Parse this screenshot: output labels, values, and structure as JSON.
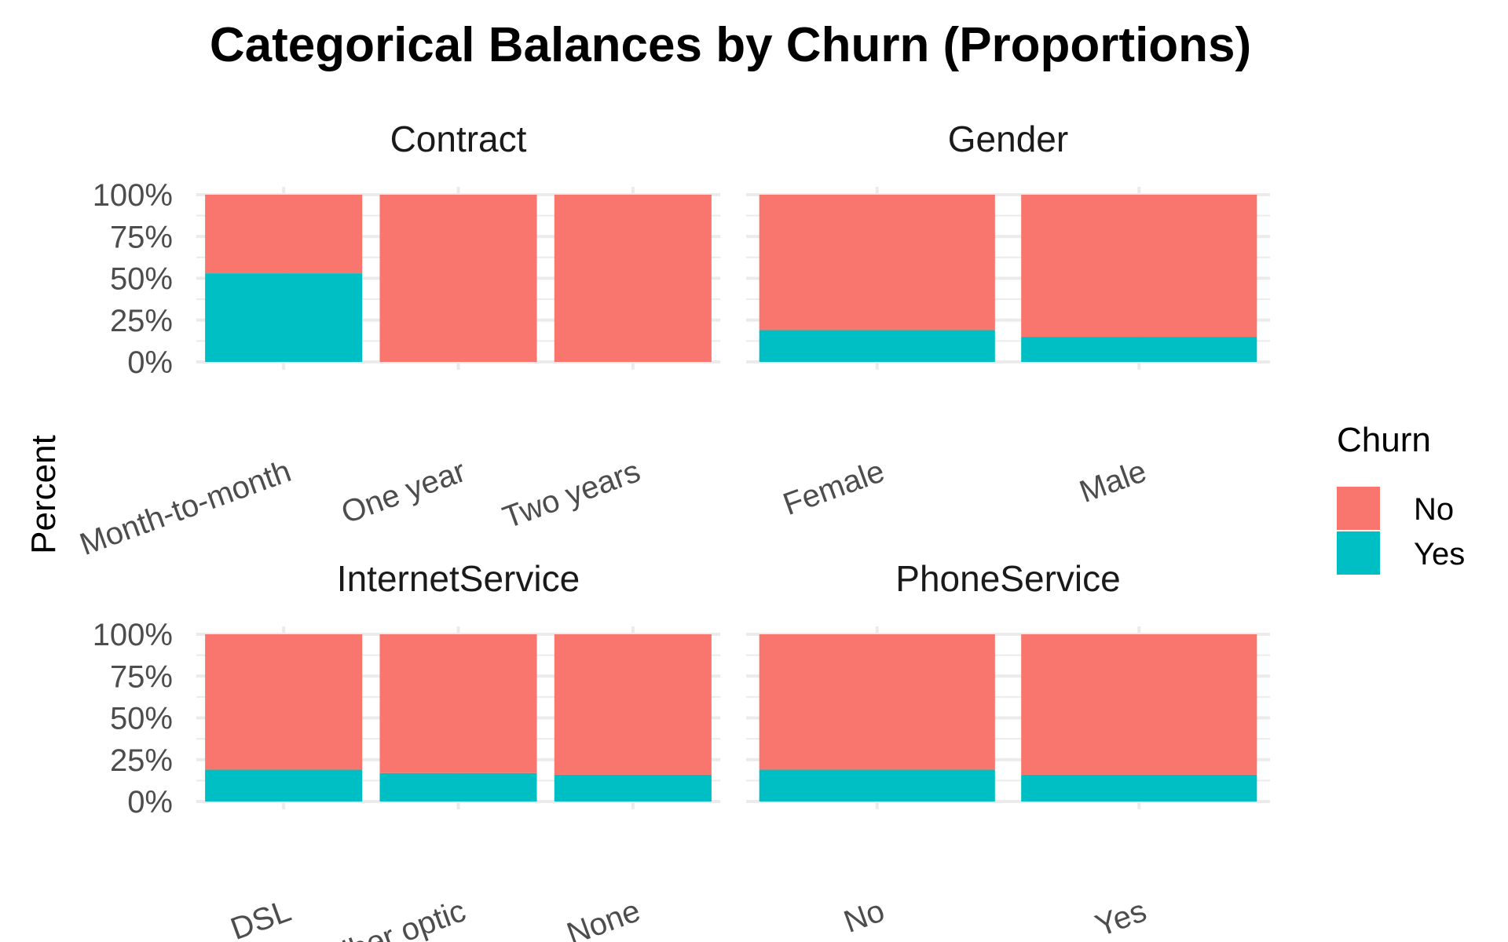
{
  "chart_data": {
    "type": "bar",
    "stacked": true,
    "title": "Categorical Balances by Churn (Proportions)",
    "ylabel": "Percent",
    "xlabel": "",
    "ylim": [
      0,
      1
    ],
    "y_ticks": [
      "0%",
      "25%",
      "50%",
      "75%",
      "100%"
    ],
    "grid": true,
    "legend": {
      "title": "Churn",
      "placement": "right",
      "entries": [
        {
          "name": "No",
          "color": "#F8766D"
        },
        {
          "name": "Yes",
          "color": "#00BFC4"
        }
      ]
    },
    "facets": [
      {
        "name": "Contract",
        "categories": [
          "Month-to-month",
          "One year",
          "Two years"
        ],
        "series": [
          {
            "name": "No",
            "values": [
              0.47,
              1.0,
              1.0
            ]
          },
          {
            "name": "Yes",
            "values": [
              0.53,
              0.0,
              0.0
            ]
          }
        ]
      },
      {
        "name": "Gender",
        "categories": [
          "Female",
          "Male"
        ],
        "series": [
          {
            "name": "No",
            "values": [
              0.81,
              0.85
            ]
          },
          {
            "name": "Yes",
            "values": [
              0.19,
              0.15
            ]
          }
        ]
      },
      {
        "name": "InternetService",
        "categories": [
          "DSL",
          "Fiber optic",
          "None"
        ],
        "series": [
          {
            "name": "No",
            "values": [
              0.81,
              0.83,
              0.84
            ]
          },
          {
            "name": "Yes",
            "values": [
              0.19,
              0.17,
              0.16
            ]
          }
        ]
      },
      {
        "name": "PhoneService",
        "categories": [
          "No",
          "Yes"
        ],
        "series": [
          {
            "name": "No",
            "values": [
              0.81,
              0.84
            ]
          },
          {
            "name": "Yes",
            "values": [
              0.19,
              0.16
            ]
          }
        ]
      }
    ]
  }
}
